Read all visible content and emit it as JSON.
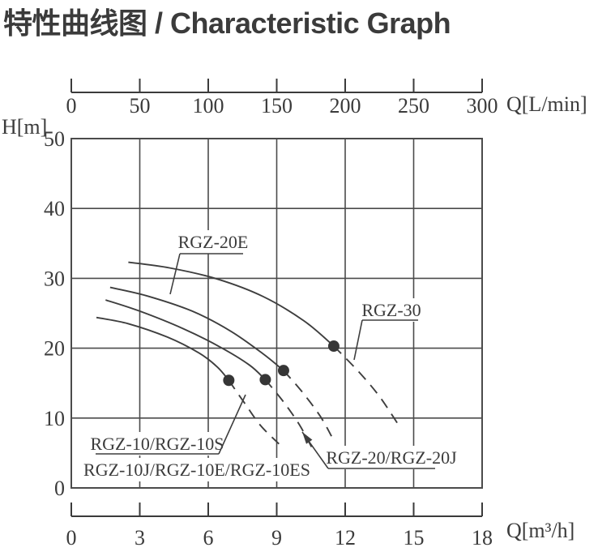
{
  "title": "特性曲线图 / Characteristic Graph",
  "colors": {
    "ink": "#3b3b3b",
    "grid": "#4b4b4b",
    "curve": "#3e3e3e",
    "dot": "#363636",
    "background": "#ffffff"
  },
  "chart_data": {
    "type": "line",
    "title": "特性曲线图 / Characteristic Graph",
    "grid": true,
    "legend_position": "inline-callouts",
    "axes": {
      "top": {
        "label": "Q[L/min]",
        "ticks": [
          0,
          50,
          100,
          150,
          200,
          250,
          300
        ],
        "range": [
          0,
          300
        ]
      },
      "left": {
        "label": "H[m]",
        "ticks": [
          50,
          40,
          30,
          20,
          10,
          0
        ],
        "range": [
          0,
          50
        ]
      },
      "bottom": {
        "label": "Q[m³/h]",
        "ticks": [
          0,
          3,
          6,
          9,
          12,
          15,
          18
        ],
        "range": [
          0,
          18
        ]
      }
    },
    "series": [
      {
        "name": "RGZ-10/RGZ-10S (RGZ-10J/RGZ-10E/RGZ-10ES)",
        "label_lines": [
          "RGZ-10/RGZ-10S",
          "RGZ-10J/RGZ-10E/RGZ-10ES"
        ],
        "solid": [
          [
            1.1,
            24.4
          ],
          [
            2.5,
            23.5
          ],
          [
            4.2,
            21.6
          ],
          [
            5.6,
            19.3
          ],
          [
            6.4,
            17.3
          ],
          [
            6.9,
            15.4
          ]
        ],
        "dashed": [
          [
            6.9,
            15.4
          ],
          [
            7.6,
            12.1
          ],
          [
            8.3,
            8.9
          ],
          [
            9.1,
            6.3
          ]
        ],
        "rated_point": [
          6.9,
          15.4
        ]
      },
      {
        "name": "RGZ-20/RGZ-20J",
        "label_lines": [
          "RGZ-20/RGZ-20J"
        ],
        "solid": [
          [
            1.5,
            26.9
          ],
          [
            3.0,
            25.3
          ],
          [
            4.9,
            22.8
          ],
          [
            6.5,
            20.2
          ],
          [
            7.8,
            17.6
          ],
          [
            8.5,
            15.5
          ]
        ],
        "dashed": [
          [
            8.5,
            15.5
          ],
          [
            9.3,
            12.3
          ],
          [
            10.0,
            9.0
          ],
          [
            10.6,
            5.4
          ]
        ],
        "rated_point": [
          8.5,
          15.5
        ]
      },
      {
        "name": "RGZ-20E",
        "label_lines": [
          "RGZ-20E"
        ],
        "solid": [
          [
            1.7,
            28.7
          ],
          [
            3.3,
            27.5
          ],
          [
            5.3,
            25.3
          ],
          [
            7.0,
            22.4
          ],
          [
            8.4,
            19.2
          ],
          [
            9.3,
            16.8
          ]
        ],
        "dashed": [
          [
            9.3,
            16.8
          ],
          [
            10.1,
            13.8
          ],
          [
            10.9,
            10.3
          ],
          [
            11.4,
            7.4
          ]
        ],
        "rated_point": [
          9.3,
          16.8
        ]
      },
      {
        "name": "RGZ-30",
        "label_lines": [
          "RGZ-30"
        ],
        "solid": [
          [
            2.5,
            32.3
          ],
          [
            4.3,
            31.5
          ],
          [
            6.4,
            29.9
          ],
          [
            8.4,
            27.4
          ],
          [
            10.2,
            23.9
          ],
          [
            11.5,
            20.3
          ]
        ],
        "dashed": [
          [
            11.5,
            20.3
          ],
          [
            12.6,
            16.6
          ],
          [
            13.5,
            13.1
          ],
          [
            14.3,
            9.2
          ]
        ],
        "rated_point": [
          11.5,
          20.3
        ]
      }
    ]
  }
}
